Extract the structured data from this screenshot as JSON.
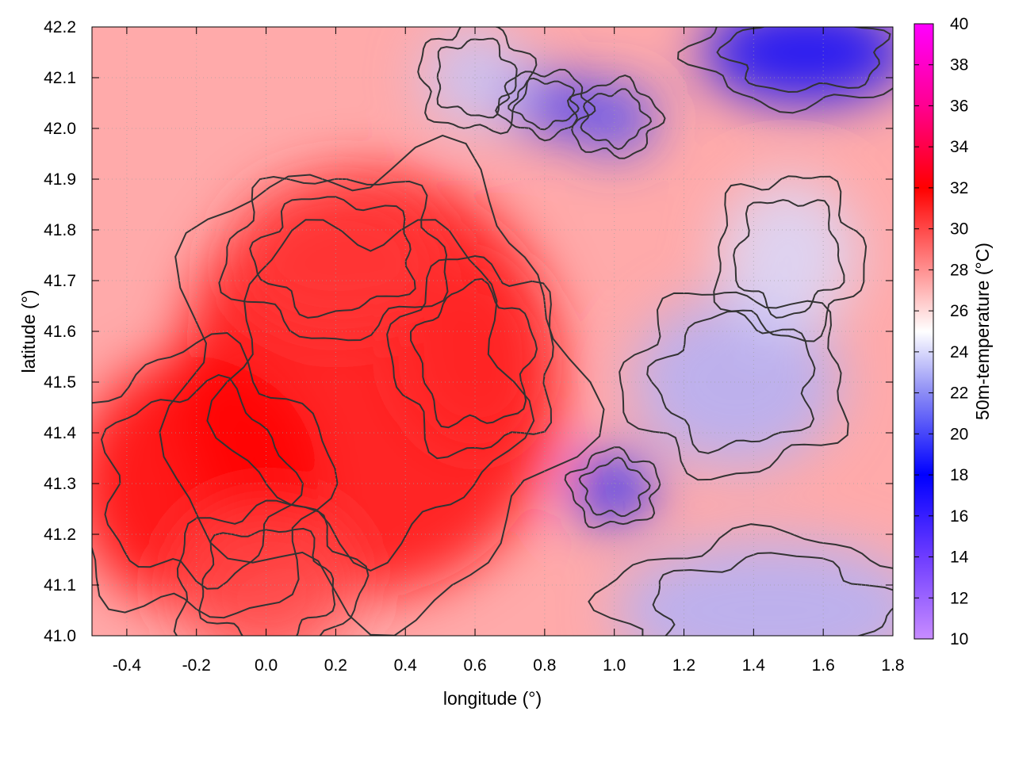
{
  "chart_data": {
    "type": "heatmap",
    "title": "",
    "xlabel": "longitude (°)",
    "ylabel": "latitude (°)",
    "colorbar_label": "50m-temperature (°C)",
    "xlim": [
      -0.5,
      1.8
    ],
    "ylim": [
      41.0,
      42.2
    ],
    "zlim": [
      10,
      40
    ],
    "x_ticks": [
      -0.4,
      -0.2,
      0.0,
      0.2,
      0.4,
      0.6,
      0.8,
      1.0,
      1.2,
      1.4,
      1.6,
      1.8
    ],
    "x_tick_labels": [
      "-0.4",
      "-0.2",
      "0.0",
      "0.2",
      "0.4",
      "0.6",
      "0.8",
      "1.0",
      "1.2",
      "1.4",
      "1.6",
      "1.8"
    ],
    "y_ticks": [
      41.0,
      41.1,
      41.2,
      41.3,
      41.4,
      41.5,
      41.6,
      41.7,
      41.8,
      41.9,
      42.0,
      42.1,
      42.2
    ],
    "y_tick_labels": [
      "41.0",
      "41.1",
      "41.2",
      "41.3",
      "41.4",
      "41.5",
      "41.6",
      "41.7",
      "41.8",
      "41.9",
      "42.0",
      "42.1",
      "42.2"
    ],
    "colorbar_ticks": [
      10,
      12,
      14,
      16,
      18,
      20,
      22,
      24,
      26,
      28,
      30,
      32,
      34,
      36,
      38,
      40
    ],
    "colorbar_tick_labels": [
      "10",
      "12",
      "14",
      "16",
      "18",
      "20",
      "22",
      "24",
      "26",
      "28",
      "30",
      "32",
      "34",
      "36",
      "38",
      "40"
    ],
    "colormap": [
      {
        "value": 10,
        "color": "#c88cff"
      },
      {
        "value": 14,
        "color": "#6e3cff"
      },
      {
        "value": 18,
        "color": "#0000ff"
      },
      {
        "value": 22,
        "color": "#8c8cf5"
      },
      {
        "value": 25,
        "color": "#ffffff"
      },
      {
        "value": 28,
        "color": "#ff9090"
      },
      {
        "value": 32,
        "color": "#ff0000"
      },
      {
        "value": 36,
        "color": "#ff0090"
      },
      {
        "value": 40,
        "color": "#ff00ff"
      }
    ],
    "grid": true,
    "contours": true,
    "regions": [
      {
        "x": 0.3,
        "y": 41.5,
        "rx": 0.55,
        "ry": 0.42,
        "value": 31.5
      },
      {
        "x": -0.2,
        "y": 41.3,
        "rx": 0.35,
        "ry": 0.25,
        "value": 32
      },
      {
        "x": 0.6,
        "y": 41.55,
        "rx": 0.22,
        "ry": 0.18,
        "value": 31
      },
      {
        "x": 0.2,
        "y": 41.75,
        "rx": 0.3,
        "ry": 0.15,
        "value": 30.5
      },
      {
        "x": 0.0,
        "y": 41.1,
        "rx": 0.25,
        "ry": 0.15,
        "value": 30
      },
      {
        "x": 1.45,
        "y": 41.05,
        "rx": 0.45,
        "ry": 0.14,
        "value": 23
      },
      {
        "x": 1.55,
        "y": 42.15,
        "rx": 0.3,
        "ry": 0.1,
        "value": 18
      },
      {
        "x": 0.8,
        "y": 42.05,
        "rx": 0.12,
        "ry": 0.06,
        "value": 19
      },
      {
        "x": 1.0,
        "y": 42.02,
        "rx": 0.12,
        "ry": 0.07,
        "value": 20
      },
      {
        "x": 1.0,
        "y": 41.29,
        "rx": 0.12,
        "ry": 0.07,
        "value": 19
      },
      {
        "x": 1.35,
        "y": 41.5,
        "rx": 0.3,
        "ry": 0.17,
        "value": 23
      },
      {
        "x": 1.5,
        "y": 41.75,
        "rx": 0.2,
        "ry": 0.15,
        "value": 24
      },
      {
        "x": 0.6,
        "y": 42.1,
        "rx": 0.15,
        "ry": 0.1,
        "value": 23.5
      }
    ]
  }
}
